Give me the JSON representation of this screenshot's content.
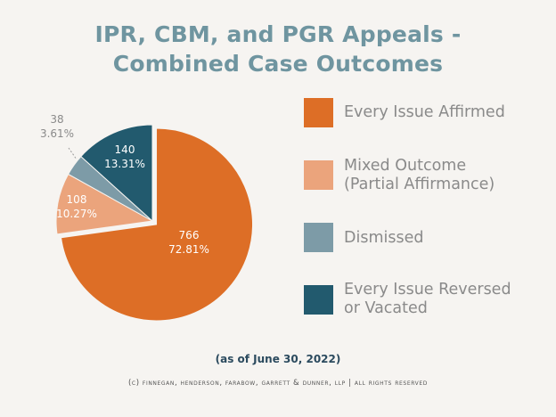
{
  "title_lines": [
    "IPR, CBM, and PGR Appeals -",
    "Combined Case Outcomes"
  ],
  "chart_data": {
    "type": "pie",
    "title": "IPR, CBM, and PGR Appeals - Combined Case Outcomes",
    "legend_position": "right",
    "series": [
      {
        "name": "Every Issue Affirmed",
        "count": "766",
        "percent": "72.81%",
        "value": 72.81,
        "color": "#dd6e26",
        "label_color": "#ffffff"
      },
      {
        "name": "Mixed Outcome (Partial Affirmance)",
        "count": "108",
        "percent": "10.27%",
        "value": 10.27,
        "color": "#eba47c",
        "label_color": "#ffffff"
      },
      {
        "name": "Dismissed",
        "count": "38",
        "percent": "3.61%",
        "value": 3.61,
        "color": "#7d9ba7",
        "label_color": "#8a8a8a"
      },
      {
        "name": "Every Issue Reversed or Vacated",
        "count": "140",
        "percent": "13.31%",
        "value": 13.31,
        "color": "#225a6e",
        "label_color": "#ffffff"
      }
    ]
  },
  "legend": [
    {
      "lines": [
        "Every Issue Affirmed"
      ],
      "color": "#dd6e26"
    },
    {
      "lines": [
        "Mixed Outcome",
        "(Partial Affirmance)"
      ],
      "color": "#eba47c"
    },
    {
      "lines": [
        "Dismissed"
      ],
      "color": "#7d9ba7"
    },
    {
      "lines": [
        "Every Issue Reversed",
        "or Vacated"
      ],
      "color": "#225a6e"
    }
  ],
  "footnote": "(as of June 30, 2022)",
  "copyright": "(c) finnegan, henderson, farabow, garrett & dunner, llp | all rights reserved"
}
